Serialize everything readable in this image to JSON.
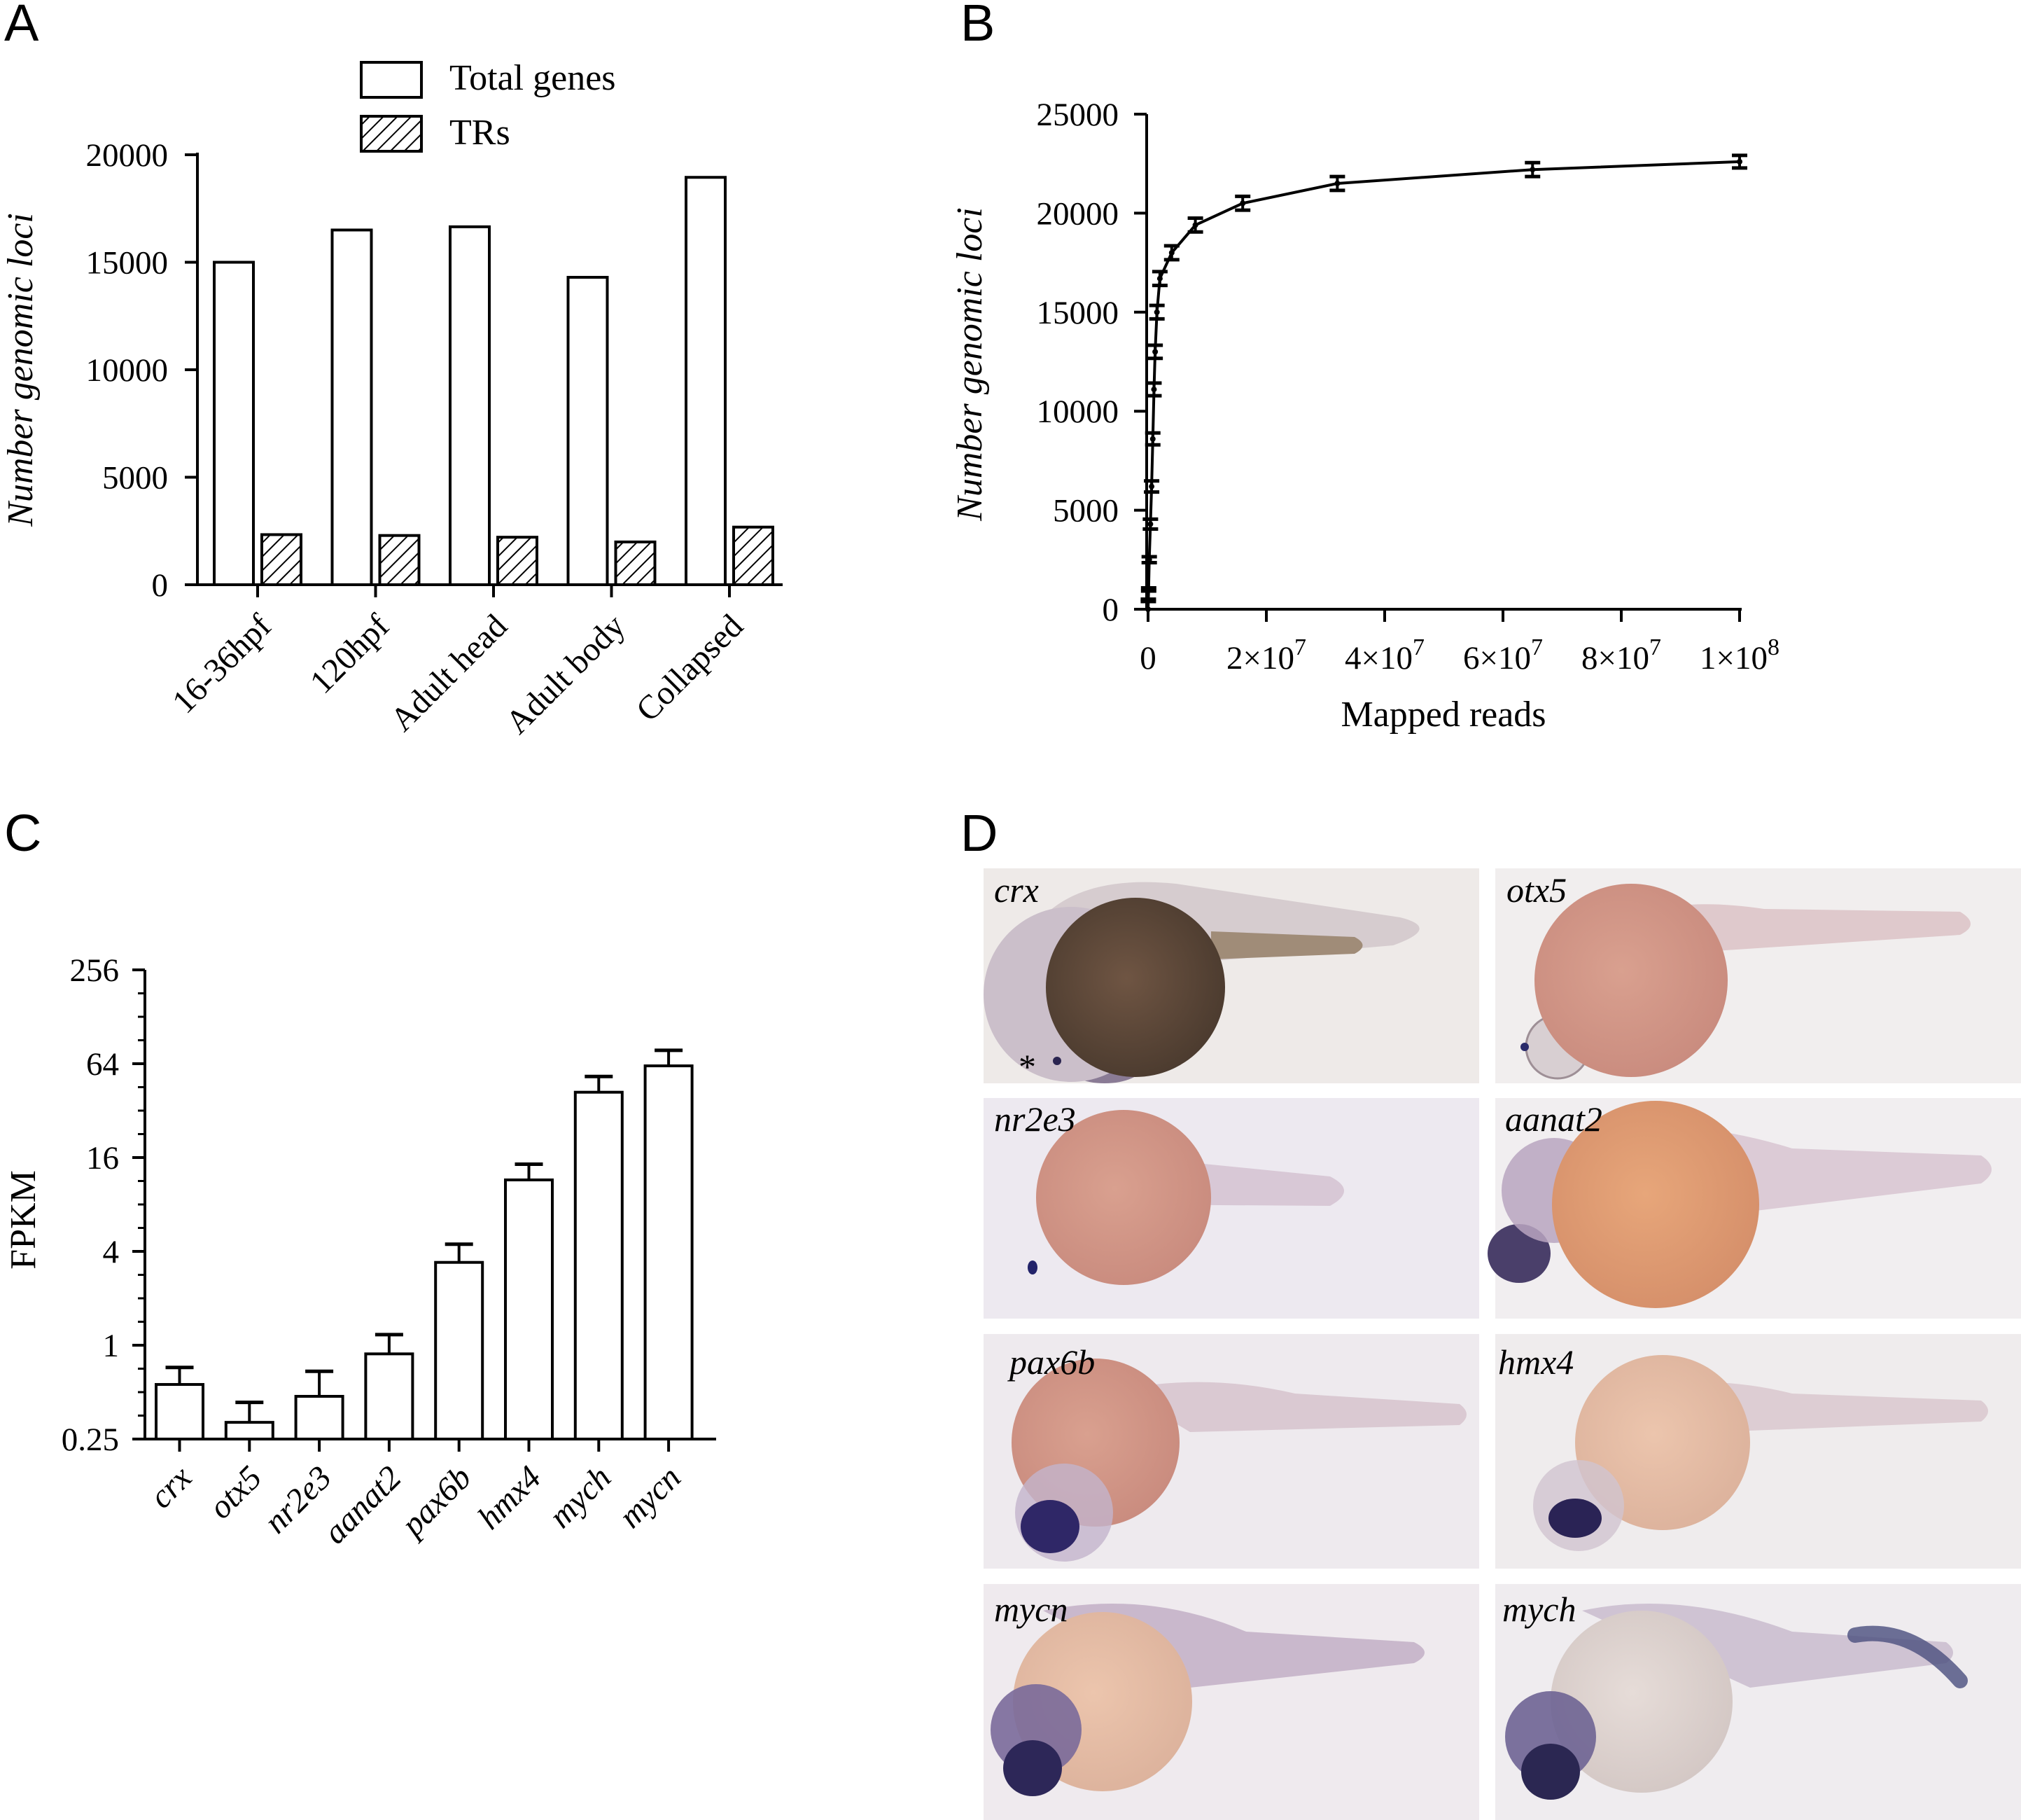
{
  "panels": {
    "A": {
      "letter": "A"
    },
    "B": {
      "letter": "B"
    },
    "C": {
      "letter": "C"
    },
    "D": {
      "letter": "D"
    }
  },
  "chart_data": [
    {
      "id": "A",
      "type": "bar",
      "ylabel": "Number genomic loci",
      "xlabel": "",
      "ylim": [
        0,
        20000
      ],
      "yticks": [
        "0",
        "5000",
        "10000",
        "15000",
        "20000"
      ],
      "categories": [
        "16-36hpf",
        "120hpf",
        "Adult head",
        "Adult body",
        "Collapsed"
      ],
      "series": [
        {
          "name": "Total genes",
          "values": [
            15000,
            16500,
            16650,
            14300,
            18950
          ]
        },
        {
          "name": "TRs",
          "values": [
            2330,
            2290,
            2210,
            1990,
            2680
          ]
        }
      ],
      "legend_position": "top-center"
    },
    {
      "id": "B",
      "type": "line",
      "ylabel": "Number genomic loci",
      "xlabel": "Mapped reads",
      "ylim": [
        0,
        25000
      ],
      "yticks": [
        "0",
        "5000",
        "10000",
        "15000",
        "20000",
        "25000"
      ],
      "xlim": [
        0,
        100000000
      ],
      "xticks": [
        {
          "base": "0",
          "exp": ""
        },
        {
          "base": "2×10",
          "exp": "7"
        },
        {
          "base": "4×10",
          "exp": "7"
        },
        {
          "base": "6×10",
          "exp": "7"
        },
        {
          "base": "8×10",
          "exp": "7"
        },
        {
          "base": "1×10",
          "exp": "8"
        }
      ],
      "x": [
        0,
        50000,
        100000,
        200000,
        400000,
        600000,
        800000,
        1000000,
        1200000,
        1500000,
        2000000,
        4000000,
        8000000,
        16000000,
        32000000,
        65000000,
        100000000
      ],
      "y": [
        0,
        450,
        1000,
        2500,
        4300,
        6200,
        8600,
        11100,
        13000,
        15000,
        16700,
        18000,
        19400,
        20500,
        21500,
        22200,
        22600
      ],
      "err": [
        0,
        60,
        80,
        150,
        250,
        280,
        300,
        320,
        330,
        340,
        350,
        350,
        350,
        350,
        350,
        350,
        320
      ]
    },
    {
      "id": "C",
      "type": "bar",
      "ylabel": "FPKM",
      "xlabel": "",
      "yscale": "log2",
      "ylim": [
        0.25,
        256
      ],
      "yticks": [
        "0.25",
        "1",
        "4",
        "16",
        "64",
        "256"
      ],
      "categories": [
        "crx",
        "otx5",
        "nr2e3",
        "aanat2",
        "pax6b",
        "hmx4",
        "mych",
        "mycn"
      ],
      "values": [
        0.56,
        0.32,
        0.47,
        0.88,
        3.4,
        11.5,
        42,
        62
      ],
      "error_upper": [
        0.72,
        0.43,
        0.68,
        1.17,
        4.45,
        14.5,
        53,
        78
      ]
    }
  ],
  "photos": {
    "labels": [
      "crx",
      "otx5",
      "nr2e3",
      "aanat2",
      "pax6b",
      "hmx4",
      "mycn",
      "mych"
    ],
    "asterisk": "*"
  }
}
